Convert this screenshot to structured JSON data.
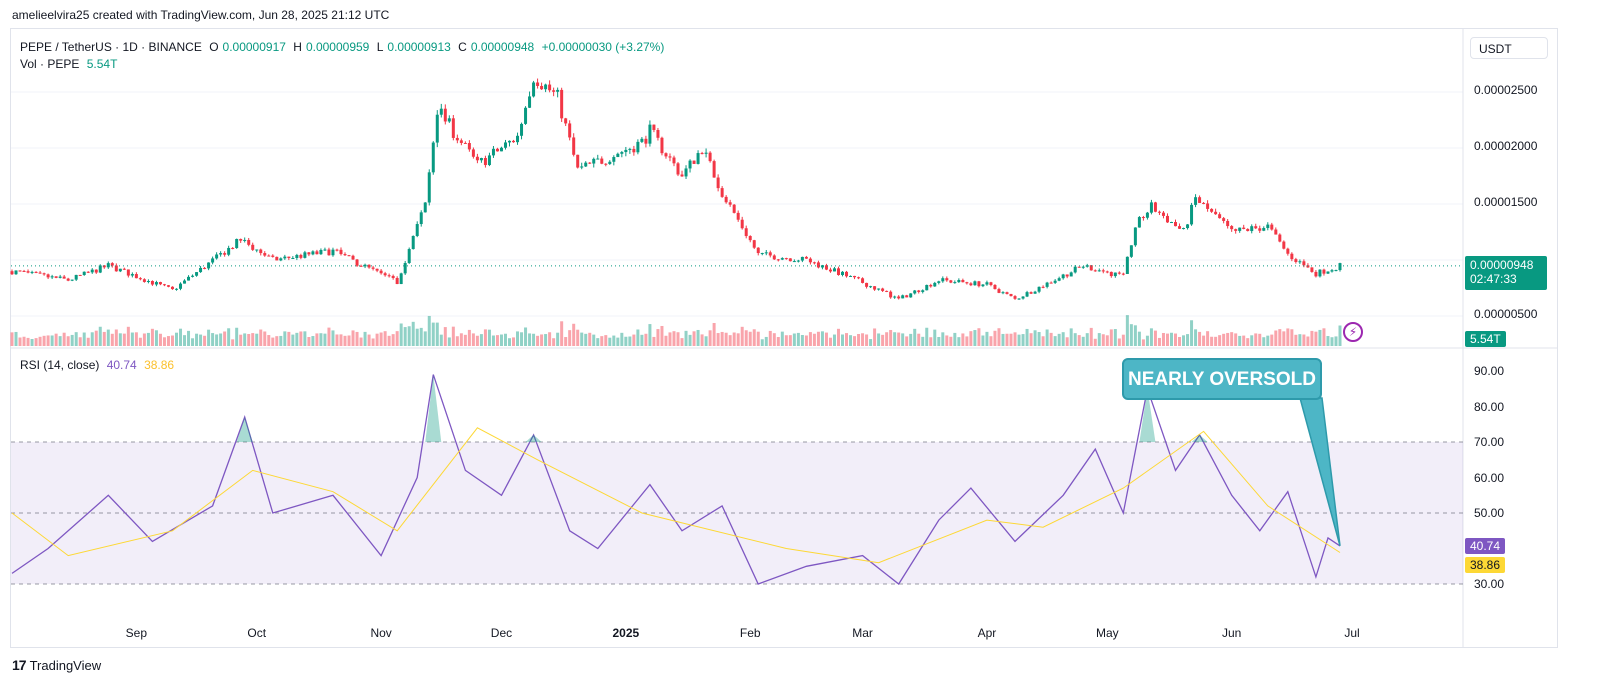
{
  "header": {
    "author_line": "amelieelvira25 created with TradingView.com, Jun 28, 2025 21:12 UTC"
  },
  "legend": {
    "symbol": "PEPE / TetherUS · 1D · BINANCE",
    "o_label": "O",
    "o_value": "0.00000917",
    "h_label": "H",
    "h_value": "0.00000959",
    "l_label": "L",
    "l_value": "0.00000913",
    "c_label": "C",
    "c_value": "0.00000948",
    "change": "+0.00000030 (+3.27%)",
    "vol_label": "Vol · PEPE",
    "vol_value": "5.54T"
  },
  "currency_button": "USDT",
  "price_axis": [
    "0.00002500",
    "0.00002000",
    "0.00001500",
    "0.00000500"
  ],
  "last_price": {
    "value": "0.00000948",
    "countdown": "02:47:33",
    "volume": "5.54T"
  },
  "rsi": {
    "label": "RSI (14, close)",
    "value": "40.74",
    "ma_value": "38.86",
    "axis": [
      "90.00",
      "80.00",
      "70.00",
      "60.00",
      "50.00",
      "30.00"
    ]
  },
  "callout": "NEARLY OVERSOLD",
  "time_axis": [
    {
      "label": "Sep",
      "bold": false
    },
    {
      "label": "Oct",
      "bold": false
    },
    {
      "label": "Nov",
      "bold": false
    },
    {
      "label": "Dec",
      "bold": false
    },
    {
      "label": "2025",
      "bold": true
    },
    {
      "label": "Feb",
      "bold": false
    },
    {
      "label": "Mar",
      "bold": false
    },
    {
      "label": "Apr",
      "bold": false
    },
    {
      "label": "May",
      "bold": false
    },
    {
      "label": "Jun",
      "bold": false
    },
    {
      "label": "Jul",
      "bold": false
    }
  ],
  "flash_icon": "lightning-icon",
  "footer": {
    "brand": "TradingView",
    "logo": "tradingview-logo-icon"
  },
  "colors": {
    "up": "#089981",
    "down": "#f23645",
    "rsi_line": "#7e57c2",
    "rsi_ma": "#fdd835",
    "callout": "#4db6c6"
  },
  "chart_data": [
    {
      "type": "candlestick",
      "title": "PEPE / TetherUS · 1D · BINANCE",
      "x_range": [
        "2024-08-01",
        "2025-06-28"
      ],
      "y_range": [
        4e-06,
        2.8e-05
      ],
      "approx_close_path": [
        [
          "2024-08-01",
          9e-06
        ],
        [
          "2024-08-15",
          8.2e-06
        ],
        [
          "2024-08-25",
          9.5e-06
        ],
        [
          "2024-09-10",
          7.3e-06
        ],
        [
          "2024-09-27",
          1.18e-05
        ],
        [
          "2024-10-05",
          1e-05
        ],
        [
          "2024-10-20",
          1.08e-05
        ],
        [
          "2024-11-05",
          8e-06
        ],
        [
          "2024-11-12",
          1.5e-05
        ],
        [
          "2024-11-15",
          2.35e-05
        ],
        [
          "2024-11-25",
          1.85e-05
        ],
        [
          "2024-12-05",
          2.1e-05
        ],
        [
          "2024-12-09",
          2.65e-05
        ],
        [
          "2024-12-15",
          2.45e-05
        ],
        [
          "2024-12-20",
          1.8e-05
        ],
        [
          "2025-01-05",
          2.05e-05
        ],
        [
          "2025-01-07",
          2.15e-05
        ],
        [
          "2025-01-15",
          1.75e-05
        ],
        [
          "2025-01-20",
          2e-05
        ],
        [
          "2025-01-25",
          1.6e-05
        ],
        [
          "2025-02-03",
          1.05e-05
        ],
        [
          "2025-02-15",
          1e-05
        ],
        [
          "2025-03-01",
          8e-06
        ],
        [
          "2025-03-10",
          6.5e-06
        ],
        [
          "2025-03-20",
          8.2e-06
        ],
        [
          "2025-04-01",
          7.8e-06
        ],
        [
          "2025-04-08",
          6.5e-06
        ],
        [
          "2025-04-25",
          9.5e-06
        ],
        [
          "2025-05-05",
          8.5e-06
        ],
        [
          "2025-05-08",
          1.3e-05
        ],
        [
          "2025-05-12",
          1.48e-05
        ],
        [
          "2025-05-20",
          1.25e-05
        ],
        [
          "2025-05-23",
          1.55e-05
        ],
        [
          "2025-06-01",
          1.25e-05
        ],
        [
          "2025-06-10",
          1.3e-05
        ],
        [
          "2025-06-15",
          1.05e-05
        ],
        [
          "2025-06-22",
          8.8e-06
        ],
        [
          "2025-06-28",
          9.48e-06
        ]
      ],
      "volume_last": "5.54T"
    },
    {
      "type": "line",
      "title": "RSI (14, close)",
      "y_range": [
        25,
        95
      ],
      "bands": [
        30,
        50,
        70
      ],
      "series": [
        {
          "name": "RSI",
          "values": [
            [
              "2024-08-01",
              33
            ],
            [
              "2024-08-10",
              40
            ],
            [
              "2024-08-25",
              55
            ],
            [
              "2024-09-05",
              42
            ],
            [
              "2024-09-20",
              52
            ],
            [
              "2024-09-28",
              77
            ],
            [
              "2024-10-05",
              50
            ],
            [
              "2024-10-20",
              55
            ],
            [
              "2024-11-01",
              38
            ],
            [
              "2024-11-10",
              60
            ],
            [
              "2024-11-14",
              89
            ],
            [
              "2024-11-22",
              62
            ],
            [
              "2024-12-01",
              55
            ],
            [
              "2024-12-09",
              72
            ],
            [
              "2024-12-18",
              45
            ],
            [
              "2024-12-25",
              40
            ],
            [
              "2025-01-07",
              58
            ],
            [
              "2025-01-15",
              45
            ],
            [
              "2025-01-25",
              52
            ],
            [
              "2025-02-03",
              30
            ],
            [
              "2025-02-15",
              35
            ],
            [
              "2025-03-01",
              38
            ],
            [
              "2025-03-10",
              30
            ],
            [
              "2025-03-20",
              48
            ],
            [
              "2025-03-28",
              57
            ],
            [
              "2025-04-08",
              42
            ],
            [
              "2025-04-20",
              55
            ],
            [
              "2025-04-28",
              68
            ],
            [
              "2025-05-05",
              50
            ],
            [
              "2025-05-11",
              85
            ],
            [
              "2025-05-18",
              62
            ],
            [
              "2025-05-24",
              72
            ],
            [
              "2025-06-01",
              55
            ],
            [
              "2025-06-08",
              45
            ],
            [
              "2025-06-15",
              56
            ],
            [
              "2025-06-22",
              32
            ],
            [
              "2025-06-25",
              43
            ],
            [
              "2025-06-28",
              40.74
            ]
          ]
        },
        {
          "name": "RSI MA",
          "values": [
            [
              "2024-08-01",
              50
            ],
            [
              "2024-08-15",
              38
            ],
            [
              "2024-09-10",
              45
            ],
            [
              "2024-09-30",
              62
            ],
            [
              "2024-10-20",
              56
            ],
            [
              "2024-11-05",
              45
            ],
            [
              "2024-11-25",
              74
            ],
            [
              "2024-12-10",
              65
            ],
            [
              "2025-01-05",
              50
            ],
            [
              "2025-02-10",
              40
            ],
            [
              "2025-03-05",
              36
            ],
            [
              "2025-04-01",
              48
            ],
            [
              "2025-04-15",
              46
            ],
            [
              "2025-05-05",
              57
            ],
            [
              "2025-05-25",
              73
            ],
            [
              "2025-06-10",
              52
            ],
            [
              "2025-06-28",
              38.86
            ]
          ]
        }
      ]
    }
  ]
}
